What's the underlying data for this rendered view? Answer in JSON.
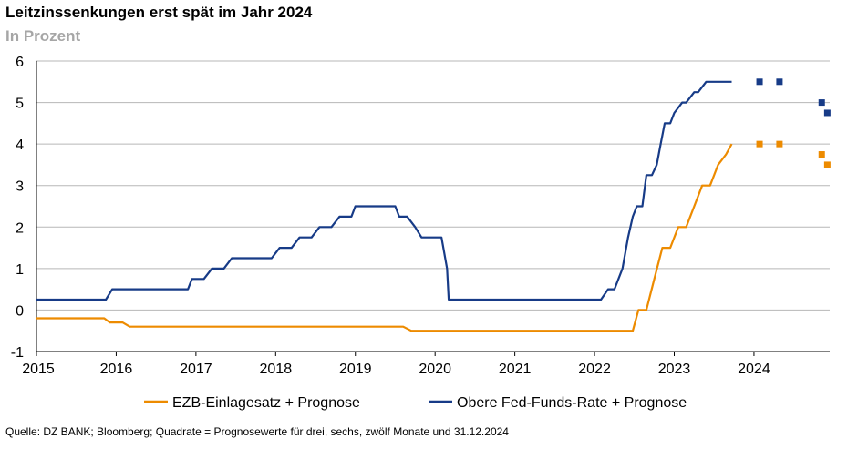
{
  "header": {
    "title": "Leitzinssenkungen erst spät im Jahr 2024",
    "subtitle": "In Prozent"
  },
  "footer": {
    "source": "Quelle: DZ BANK; Bloomberg; Quadrate = Prognosewerte für drei, sechs, zwölf Monate und 31.12.2024"
  },
  "chart_data": {
    "type": "line",
    "title": "Leitzinssenkungen erst spät im Jahr 2024",
    "subtitle": "In Prozent",
    "xlabel": "",
    "ylabel": "",
    "xlim": [
      2015,
      2024.95
    ],
    "ylim": [
      -1,
      6
    ],
    "x_ticks": [
      "2015",
      "2016",
      "2017",
      "2018",
      "2019",
      "2020",
      "2021",
      "2022",
      "2023",
      "2024"
    ],
    "y_ticks": [
      "-1",
      "0",
      "1",
      "2",
      "3",
      "4",
      "5",
      "6"
    ],
    "grid": true,
    "legend_position": "bottom",
    "colors": {
      "ezb": "#ED8B00",
      "fed": "#173B87",
      "grid": "#b7b7b7",
      "axis": "#000000"
    },
    "series": [
      {
        "name": "EZB-Einlagesatz + Prognose",
        "x": [
          2015.0,
          2015.85,
          2015.92,
          2016.08,
          2016.17,
          2019.6,
          2019.7,
          2022.48,
          2022.55,
          2022.65,
          2022.75,
          2022.85,
          2022.95,
          2023.05,
          2023.15,
          2023.25,
          2023.35,
          2023.45,
          2023.55,
          2023.65,
          2023.72
        ],
        "y": [
          -0.2,
          -0.2,
          -0.3,
          -0.3,
          -0.4,
          -0.4,
          -0.5,
          -0.5,
          0.0,
          0.0,
          0.75,
          1.5,
          1.5,
          2.0,
          2.0,
          2.5,
          3.0,
          3.0,
          3.5,
          3.75,
          4.0
        ]
      },
      {
        "name": "Obere Fed-Funds-Rate + Prognose",
        "x": [
          2015.0,
          2015.87,
          2015.95,
          2016.9,
          2016.95,
          2017.1,
          2017.2,
          2017.35,
          2017.45,
          2017.95,
          2018.05,
          2018.2,
          2018.3,
          2018.45,
          2018.55,
          2018.7,
          2018.8,
          2018.95,
          2019.0,
          2019.5,
          2019.55,
          2019.65,
          2019.75,
          2019.83,
          2020.08,
          2020.15,
          2020.17,
          2022.08,
          2022.17,
          2022.25,
          2022.35,
          2022.42,
          2022.48,
          2022.53,
          2022.6,
          2022.65,
          2022.72,
          2022.78,
          2022.83,
          2022.88,
          2022.95,
          2023.0,
          2023.1,
          2023.15,
          2023.25,
          2023.3,
          2023.4,
          2023.45,
          2023.55,
          2023.65,
          2023.72
        ],
        "y": [
          0.25,
          0.25,
          0.5,
          0.5,
          0.75,
          0.75,
          1.0,
          1.0,
          1.25,
          1.25,
          1.5,
          1.5,
          1.75,
          1.75,
          2.0,
          2.0,
          2.25,
          2.25,
          2.5,
          2.5,
          2.25,
          2.25,
          2.0,
          1.75,
          1.75,
          1.0,
          0.25,
          0.25,
          0.5,
          0.5,
          1.0,
          1.75,
          2.25,
          2.5,
          2.5,
          3.25,
          3.25,
          3.5,
          4.0,
          4.5,
          4.5,
          4.75,
          5.0,
          5.0,
          5.25,
          5.25,
          5.5,
          5.5,
          5.5,
          5.5,
          5.5
        ]
      }
    ],
    "forecast_markers": [
      {
        "name": "EZB-Einlagesatz + Prognose",
        "x": [
          2024.07,
          2024.32,
          2024.85,
          2024.92
        ],
        "y": [
          4.0,
          4.0,
          3.75,
          3.5
        ]
      },
      {
        "name": "Obere Fed-Funds-Rate + Prognose",
        "x": [
          2024.07,
          2024.32,
          2024.85,
          2024.92
        ],
        "y": [
          5.5,
          5.5,
          5.0,
          4.75
        ]
      }
    ]
  }
}
